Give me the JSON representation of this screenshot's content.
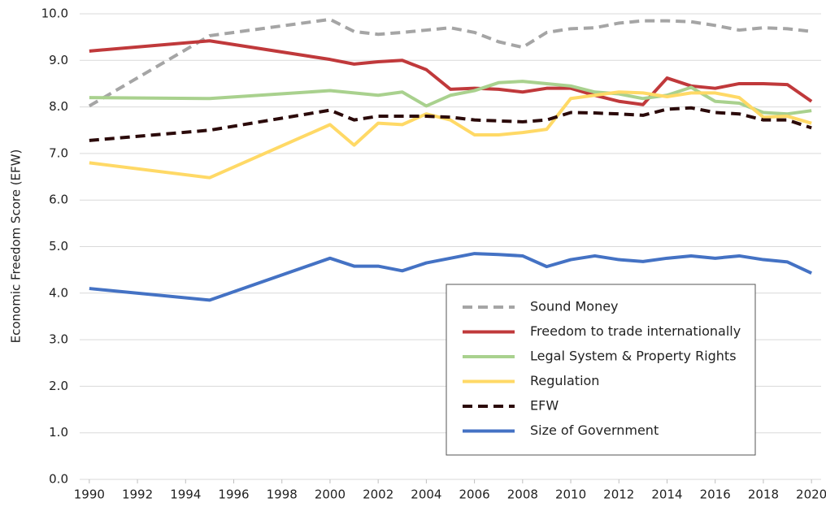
{
  "chart_data": {
    "type": "line",
    "ylabel": "Economic Freedom Score (EFW)",
    "x": [
      1990,
      1995,
      2000,
      2001,
      2002,
      2003,
      2004,
      2005,
      2006,
      2007,
      2008,
      2009,
      2010,
      2011,
      2012,
      2013,
      2014,
      2015,
      2016,
      2017,
      2018,
      2019,
      2020
    ],
    "series": [
      {
        "name": "Sound Money",
        "color": "#a5a5a5",
        "dash": true,
        "values": [
          8.02,
          9.53,
          9.88,
          9.62,
          9.56,
          9.6,
          9.65,
          9.7,
          9.6,
          9.4,
          9.28,
          9.6,
          9.68,
          9.7,
          9.8,
          9.85,
          9.85,
          9.83,
          9.75,
          9.65,
          9.7,
          9.68,
          9.62
        ]
      },
      {
        "name": "Freedom to trade internationally",
        "color": "#c0393b",
        "dash": false,
        "values": [
          9.2,
          9.42,
          9.02,
          8.92,
          8.97,
          9.0,
          8.8,
          8.38,
          8.4,
          8.38,
          8.32,
          8.4,
          8.4,
          8.25,
          8.12,
          8.05,
          8.62,
          8.45,
          8.4,
          8.5,
          8.5,
          8.48,
          8.12
        ]
      },
      {
        "name": "Legal System & Property Rights",
        "color": "#a9d18e",
        "dash": false,
        "values": [
          8.2,
          8.18,
          8.35,
          8.3,
          8.25,
          8.32,
          8.02,
          8.25,
          8.35,
          8.52,
          8.55,
          8.5,
          8.45,
          8.32,
          8.28,
          8.18,
          8.25,
          8.42,
          8.12,
          8.08,
          7.88,
          7.85,
          7.92
        ]
      },
      {
        "name": "Regulation",
        "color": "#ffd966",
        "dash": false,
        "values": [
          6.8,
          6.48,
          7.62,
          7.18,
          7.65,
          7.62,
          7.85,
          7.72,
          7.4,
          7.4,
          7.45,
          7.52,
          8.18,
          8.25,
          8.32,
          8.3,
          8.22,
          8.3,
          8.3,
          8.2,
          7.78,
          7.8,
          7.65
        ]
      },
      {
        "name": "EFW",
        "color": "#2b0a0a",
        "dash": true,
        "values": [
          7.28,
          7.5,
          7.93,
          7.72,
          7.8,
          7.8,
          7.8,
          7.78,
          7.72,
          7.7,
          7.68,
          7.72,
          7.88,
          7.87,
          7.85,
          7.82,
          7.95,
          7.98,
          7.88,
          7.85,
          7.72,
          7.72,
          7.55
        ]
      },
      {
        "name": "Size of Government",
        "color": "#4472c4",
        "dash": false,
        "values": [
          4.1,
          3.85,
          4.75,
          4.58,
          4.58,
          4.48,
          4.65,
          4.75,
          4.85,
          4.83,
          4.8,
          4.57,
          4.72,
          4.8,
          4.72,
          4.68,
          4.75,
          4.8,
          4.75,
          4.8,
          4.72,
          4.67,
          4.43
        ]
      }
    ],
    "xlim": [
      1989.6,
      2020.4
    ],
    "xticks": [
      1990,
      1992,
      1994,
      1996,
      1998,
      2000,
      2002,
      2004,
      2006,
      2008,
      2010,
      2012,
      2014,
      2016,
      2018,
      2020
    ],
    "ylim": [
      0,
      10
    ],
    "yticks": [
      {
        "value": 0,
        "label": "0.0"
      },
      {
        "value": 1,
        "label": "1.0"
      },
      {
        "value": 2,
        "label": "2.0"
      },
      {
        "value": 3,
        "label": "3.0"
      },
      {
        "value": 4,
        "label": "4.0"
      },
      {
        "value": 5,
        "label": "5.0"
      },
      {
        "value": 6,
        "label": "6.0"
      },
      {
        "value": 7,
        "label": "7.0"
      },
      {
        "value": 8,
        "label": "8.0"
      },
      {
        "value": 9,
        "label": "9.0"
      },
      {
        "value": 10,
        "label": "10.0"
      }
    ],
    "grid": true,
    "legend_position": "lower right"
  }
}
